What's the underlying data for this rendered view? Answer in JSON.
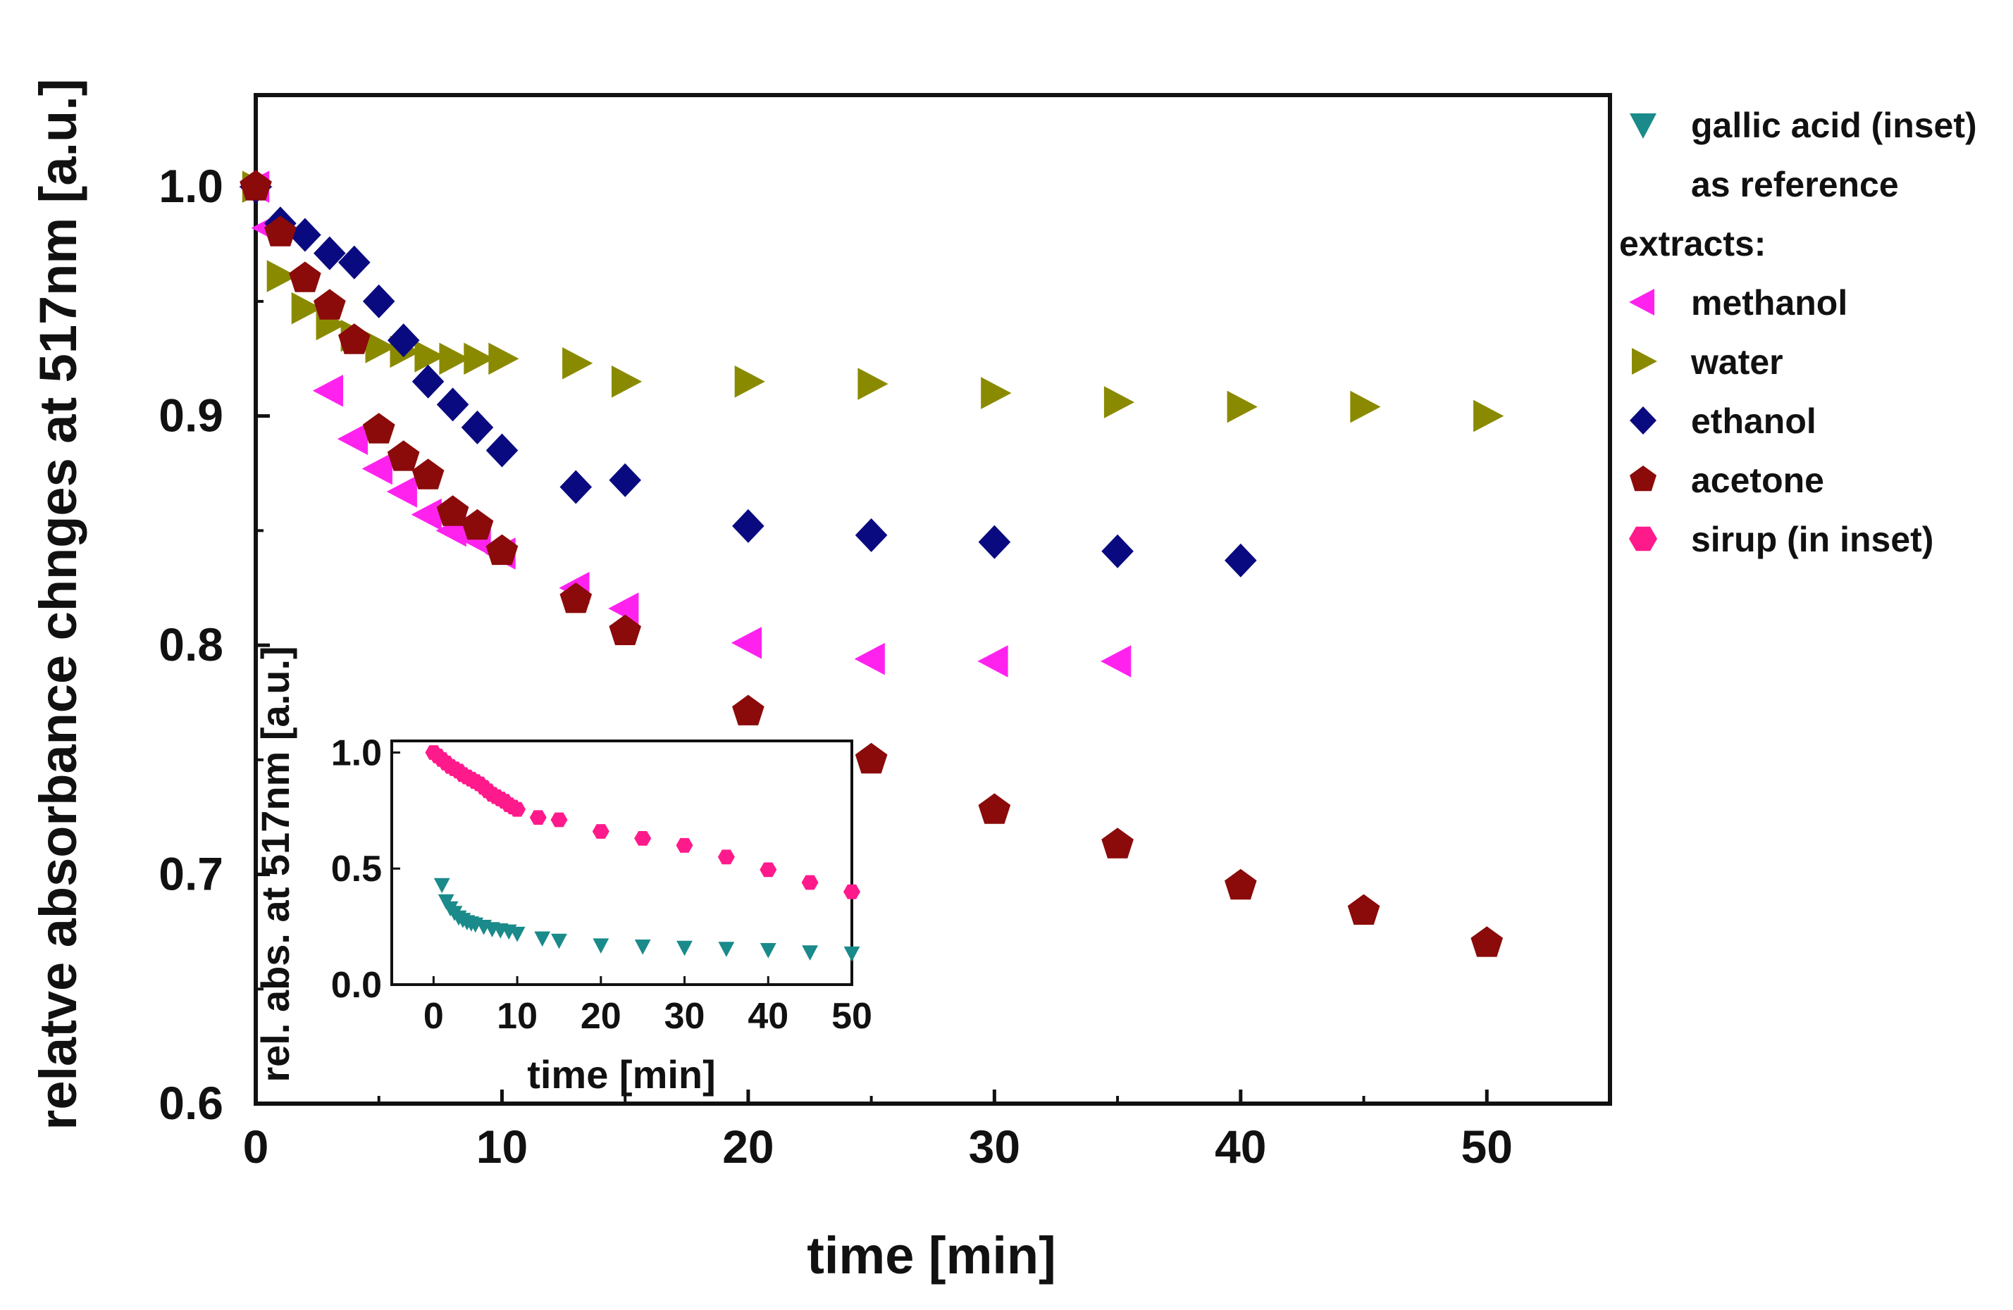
{
  "chart_data": [
    {
      "type": "scatter",
      "name": "main",
      "title": "",
      "xlabel": "time [min]",
      "ylabel": "relatve absorbance chnges at 517nm [a.u.]",
      "xlim": [
        0,
        55
      ],
      "ylim": [
        0.6,
        1.04
      ],
      "xticks": [
        0,
        10,
        20,
        30,
        40,
        50
      ],
      "xtick_labels": [
        "0",
        "10",
        "20",
        "30",
        "40",
        "50"
      ],
      "yticks": [
        0.6,
        0.7,
        0.8,
        0.9,
        1.0
      ],
      "ytick_labels": [
        "0.6",
        "0.7",
        "0.8",
        "0.9",
        "1.0"
      ],
      "yminor_ticks": [
        0.65,
        0.75,
        0.85,
        0.95
      ],
      "grid": false,
      "series": [
        {
          "name": "methanol",
          "marker": "triangle-left",
          "color": "#ff22ee",
          "x": [
            0,
            0.5,
            3,
            4,
            5,
            6,
            7,
            8,
            9,
            10,
            13,
            15,
            20,
            25,
            30,
            35
          ],
          "y": [
            1.0,
            0.982,
            0.911,
            0.89,
            0.877,
            0.867,
            0.857,
            0.85,
            0.846,
            0.84,
            0.825,
            0.816,
            0.801,
            0.794,
            0.793,
            0.793
          ]
        },
        {
          "name": "water",
          "marker": "triangle-right",
          "color": "#8a8a00",
          "x": [
            0,
            1,
            2,
            3,
            4,
            5,
            6,
            7,
            8,
            9,
            10,
            13,
            15,
            20,
            25,
            30,
            35,
            40,
            45,
            50
          ],
          "y": [
            1.0,
            0.961,
            0.947,
            0.94,
            0.935,
            0.93,
            0.928,
            0.926,
            0.925,
            0.925,
            0.925,
            0.923,
            0.915,
            0.915,
            0.914,
            0.91,
            0.906,
            0.904,
            0.904,
            0.9
          ]
        },
        {
          "name": "ethanol",
          "marker": "diamond",
          "color": "#0a0a80",
          "x": [
            0,
            1,
            2,
            3,
            4,
            5,
            6,
            7,
            8,
            9,
            10,
            13,
            15,
            20,
            25,
            30,
            35,
            40
          ],
          "y": [
            1.0,
            0.984,
            0.979,
            0.971,
            0.967,
            0.95,
            0.933,
            0.915,
            0.905,
            0.895,
            0.885,
            0.869,
            0.872,
            0.852,
            0.848,
            0.845,
            0.841,
            0.837
          ]
        },
        {
          "name": "acetone",
          "marker": "pentagon",
          "color": "#8b0a0a",
          "x": [
            0,
            1,
            2,
            3,
            4,
            5,
            6,
            7,
            8,
            9,
            10,
            13,
            15,
            20,
            25,
            30,
            35,
            40,
            45,
            50
          ],
          "y": [
            1.0,
            0.98,
            0.96,
            0.948,
            0.933,
            0.894,
            0.882,
            0.874,
            0.858,
            0.852,
            0.841,
            0.82,
            0.806,
            0.771,
            0.75,
            0.728,
            0.713,
            0.695,
            0.684,
            0.67
          ]
        }
      ],
      "legend": {
        "placement": "right",
        "entries": [
          {
            "label": "gallic acid (inset)",
            "marker": "triangle-down",
            "color": "#1a8a8a"
          },
          {
            "label": "as reference",
            "marker": "none",
            "color": ""
          },
          {
            "label": "extracts:",
            "marker": "none",
            "color": ""
          },
          {
            "label": "methanol",
            "marker": "triangle-left",
            "color": "#ff22ee"
          },
          {
            "label": "water",
            "marker": "triangle-right",
            "color": "#8a8a00"
          },
          {
            "label": "ethanol",
            "marker": "diamond",
            "color": "#0a0a80"
          },
          {
            "label": "acetone",
            "marker": "pentagon",
            "color": "#8b0a0a"
          },
          {
            "label": "sirup (in inset)",
            "marker": "hexagon",
            "color": "#ff1a8c"
          }
        ]
      }
    },
    {
      "type": "scatter",
      "name": "inset",
      "title": "",
      "xlabel": "time [min]",
      "ylabel": "rel. abs. at 517nm [a.u.]",
      "xlim": [
        -5,
        50
      ],
      "ylim": [
        0,
        1.05
      ],
      "xticks": [
        0,
        10,
        20,
        30,
        40,
        50
      ],
      "xtick_labels": [
        "0",
        "10",
        "20",
        "30",
        "40",
        "50"
      ],
      "yticks": [
        0.0,
        0.5,
        1.0
      ],
      "ytick_labels": [
        "0.0",
        "0.5",
        "1.0"
      ],
      "grid": false,
      "series": [
        {
          "name": "sirup",
          "marker": "hexagon",
          "color": "#ff1a8c",
          "x": [
            0,
            0.5,
            1,
            1.5,
            2,
            2.5,
            3,
            3.5,
            4,
            4.5,
            5,
            5.5,
            6,
            6.5,
            7,
            7.5,
            8,
            8.5,
            9,
            9.5,
            10,
            12.5,
            15,
            20,
            25,
            30,
            35,
            40,
            45,
            50
          ],
          "y": [
            1.0,
            0.985,
            0.97,
            0.955,
            0.94,
            0.93,
            0.92,
            0.905,
            0.895,
            0.885,
            0.875,
            0.865,
            0.85,
            0.835,
            0.82,
            0.81,
            0.8,
            0.79,
            0.775,
            0.765,
            0.755,
            0.72,
            0.71,
            0.66,
            0.63,
            0.6,
            0.55,
            0.495,
            0.44,
            0.4
          ]
        },
        {
          "name": "gallic acid",
          "marker": "triangle-down",
          "color": "#1a8a8a",
          "x": [
            1,
            1.5,
            2,
            2.5,
            3,
            3.5,
            4,
            4.5,
            5,
            6,
            7,
            8,
            9,
            10,
            13,
            15,
            20,
            25,
            30,
            35,
            40,
            45,
            50
          ],
          "y": [
            0.43,
            0.36,
            0.33,
            0.31,
            0.29,
            0.28,
            0.27,
            0.265,
            0.26,
            0.25,
            0.24,
            0.235,
            0.23,
            0.22,
            0.2,
            0.19,
            0.17,
            0.165,
            0.16,
            0.155,
            0.15,
            0.14,
            0.135
          ]
        }
      ]
    }
  ]
}
